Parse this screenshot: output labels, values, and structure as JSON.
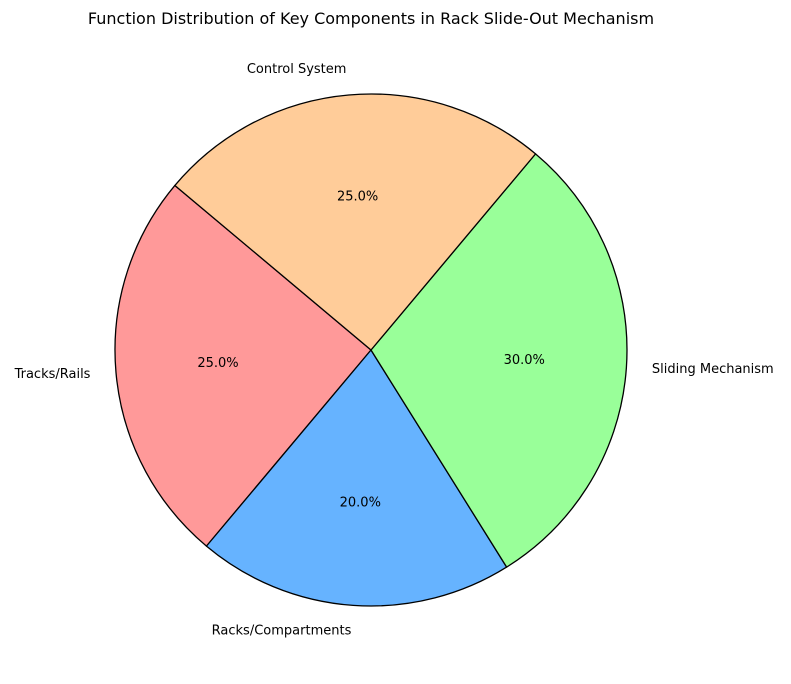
{
  "chart_data": {
    "type": "pie",
    "title": "Function Distribution of Key Components in Rack Slide-Out Mechanism",
    "start_angle_deg": 140,
    "direction": "counterclockwise",
    "slices": [
      {
        "label": "Tracks/Rails",
        "value": 25.0,
        "pct_label": "25.0%",
        "color": "#ff9999"
      },
      {
        "label": "Racks/Compartments",
        "value": 20.0,
        "pct_label": "20.0%",
        "color": "#66b3ff"
      },
      {
        "label": "Sliding Mechanism",
        "value": 30.0,
        "pct_label": "30.0%",
        "color": "#99ff99"
      },
      {
        "label": "Control System",
        "value": 25.0,
        "pct_label": "25.0%",
        "color": "#ffcc99"
      }
    ],
    "edge_color": "#000000"
  }
}
